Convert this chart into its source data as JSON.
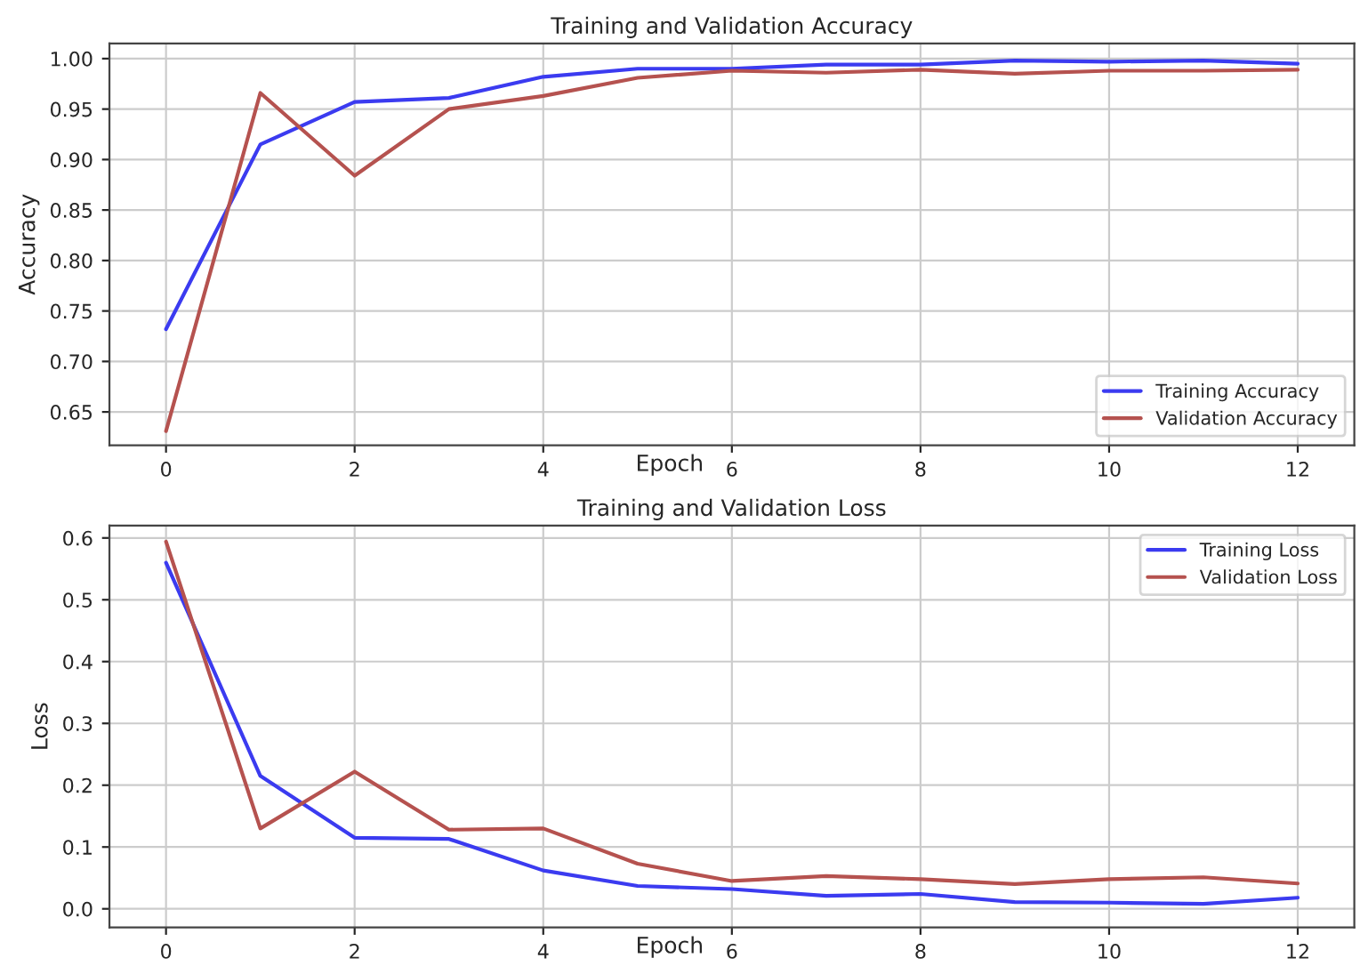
{
  "chart_data": [
    {
      "type": "line",
      "title": "Training and Validation Accuracy",
      "xlabel": "Epoch",
      "ylabel": "Accuracy",
      "x": [
        0,
        1,
        2,
        3,
        4,
        5,
        6,
        7,
        8,
        9,
        10,
        11,
        12
      ],
      "series": [
        {
          "name": "Training Accuracy",
          "color": "#3b3bf0",
          "values": [
            0.732,
            0.915,
            0.957,
            0.961,
            0.982,
            0.99,
            0.99,
            0.994,
            0.994,
            0.998,
            0.997,
            0.998,
            0.995
          ]
        },
        {
          "name": "Validation Accuracy",
          "color": "#b5524f",
          "values": [
            0.631,
            0.966,
            0.884,
            0.95,
            0.963,
            0.981,
            0.988,
            0.986,
            0.989,
            0.985,
            0.988,
            0.988,
            0.989
          ]
        }
      ],
      "xlim": [
        -0.6,
        12.6
      ],
      "ylim": [
        0.617,
        1.015
      ],
      "xticks": [
        0,
        2,
        4,
        6,
        8,
        10,
        12
      ],
      "yticks": [
        {
          "value": 0.65,
          "label": "0.65"
        },
        {
          "value": 0.7,
          "label": "0.70"
        },
        {
          "value": 0.75,
          "label": "0.75"
        },
        {
          "value": 0.8,
          "label": "0.80"
        },
        {
          "value": 0.85,
          "label": "0.85"
        },
        {
          "value": 0.9,
          "label": "0.90"
        },
        {
          "value": 0.95,
          "label": "0.95"
        },
        {
          "value": 1.0,
          "label": "1.00"
        }
      ],
      "grid": true,
      "legend": "bottom right"
    },
    {
      "type": "line",
      "title": "Training and Validation Loss",
      "xlabel": "Epoch",
      "ylabel": "Loss",
      "x": [
        0,
        1,
        2,
        3,
        4,
        5,
        6,
        7,
        8,
        9,
        10,
        11,
        12
      ],
      "series": [
        {
          "name": "Training Loss",
          "color": "#3b3bf0",
          "values": [
            0.56,
            0.215,
            0.115,
            0.113,
            0.062,
            0.037,
            0.032,
            0.021,
            0.024,
            0.011,
            0.01,
            0.008,
            0.018
          ]
        },
        {
          "name": "Validation Loss",
          "color": "#b5524f",
          "values": [
            0.594,
            0.13,
            0.222,
            0.128,
            0.13,
            0.073,
            0.045,
            0.053,
            0.048,
            0.04,
            0.048,
            0.051,
            0.041
          ]
        }
      ],
      "xlim": [
        -0.6,
        12.6
      ],
      "ylim": [
        -0.03,
        0.62
      ],
      "xticks": [
        0,
        2,
        4,
        6,
        8,
        10,
        12
      ],
      "yticks": [
        {
          "value": 0.0,
          "label": "0.0"
        },
        {
          "value": 0.1,
          "label": "0.1"
        },
        {
          "value": 0.2,
          "label": "0.2"
        },
        {
          "value": 0.3,
          "label": "0.3"
        },
        {
          "value": 0.4,
          "label": "0.4"
        },
        {
          "value": 0.5,
          "label": "0.5"
        },
        {
          "value": 0.6,
          "label": "0.6"
        }
      ],
      "grid": true,
      "legend": "top right"
    }
  ]
}
